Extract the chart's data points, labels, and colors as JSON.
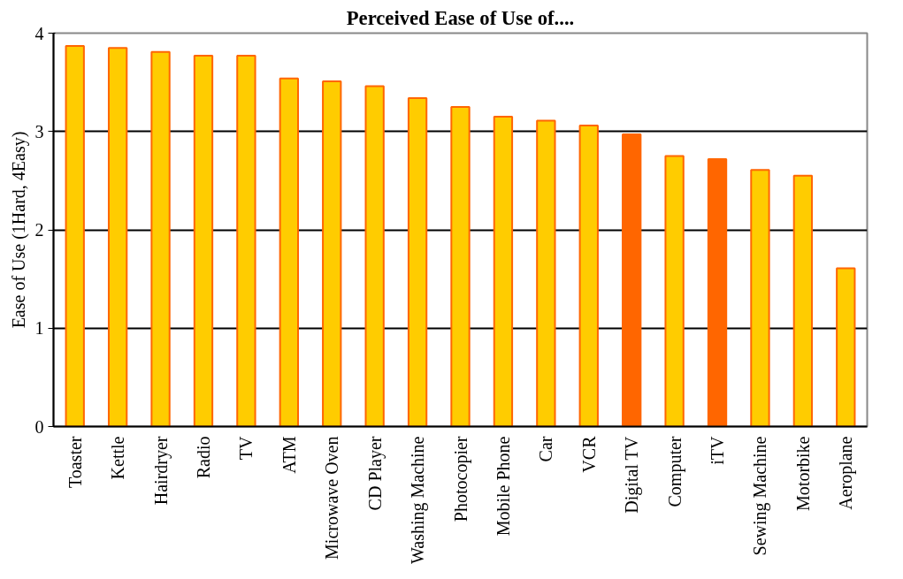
{
  "chart_data": {
    "type": "bar",
    "title": "Perceived Ease of Use of....",
    "ylabel": "Ease of Use (1Hard, 4Easy)",
    "categories": [
      "Toaster",
      "Kettle",
      "Hairdryer",
      "Radio",
      "TV",
      "ATM",
      "Microwave Oven",
      "CD Player",
      "Washing Machine",
      "Photocopier",
      "Mobile Phone",
      "Car",
      "VCR",
      "Digital TV",
      "Computer",
      "iTV",
      "Sewing Machine",
      "Motorbike",
      "Aeroplane"
    ],
    "values": [
      3.87,
      3.85,
      3.81,
      3.77,
      3.77,
      3.54,
      3.51,
      3.46,
      3.34,
      3.25,
      3.15,
      3.11,
      3.06,
      2.97,
      2.75,
      2.72,
      2.61,
      2.55,
      1.61
    ],
    "colors": [
      "#ffcc00",
      "#ffcc00",
      "#ffcc00",
      "#ffcc00",
      "#ffcc00",
      "#ffcc00",
      "#ffcc00",
      "#ffcc00",
      "#ffcc00",
      "#ffcc00",
      "#ffcc00",
      "#ffcc00",
      "#ffcc00",
      "#ff6600",
      "#ffcc00",
      "#ff6600",
      "#ffcc00",
      "#ffcc00",
      "#ffcc00"
    ],
    "ylim": [
      0,
      4
    ],
    "yticks": [
      0,
      1,
      2,
      3,
      4
    ],
    "grid": "y"
  }
}
